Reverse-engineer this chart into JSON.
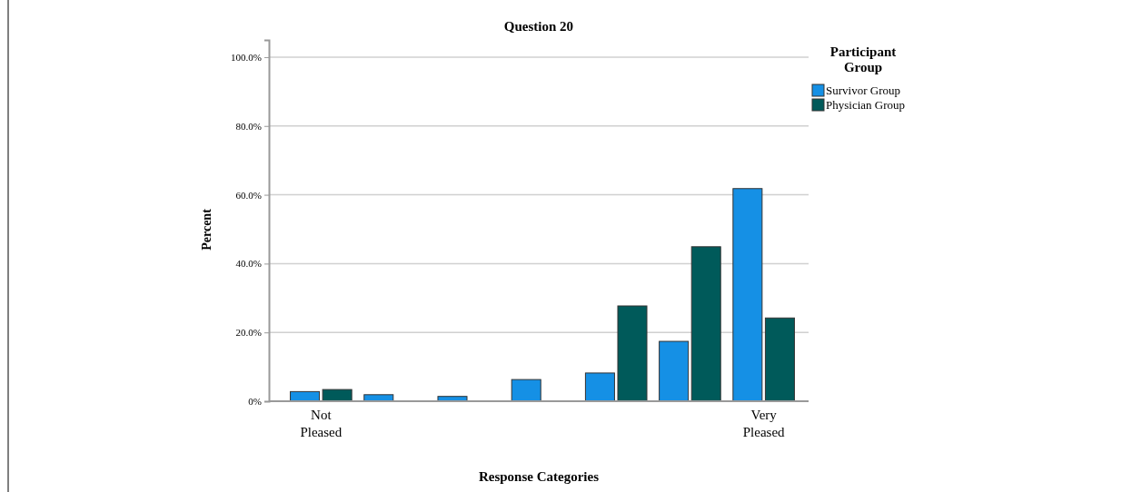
{
  "chart_data": {
    "type": "bar",
    "title": "Question 20",
    "xlabel": "Response Categories",
    "ylabel": "Percent",
    "legend_title": "Participant Group",
    "categories": [
      "Not Pleased",
      null,
      null,
      null,
      null,
      null,
      "Very Pleased"
    ],
    "series": [
      {
        "name": "Survivor Group",
        "color": "#1590e5",
        "values": [
          2.8,
          1.9,
          1.4,
          6.3,
          8.2,
          17.4,
          61.8
        ]
      },
      {
        "name": "Physician Group",
        "color": "#005a5a",
        "values": [
          3.4,
          0,
          0,
          0,
          27.7,
          44.9,
          24.2
        ]
      }
    ],
    "ylim": [
      0,
      105
    ],
    "yticks": [
      {
        "value": 0,
        "label": "0%"
      },
      {
        "value": 20,
        "label": "20.0%"
      },
      {
        "value": 40,
        "label": "40.0%"
      },
      {
        "value": 60,
        "label": "60.0%"
      },
      {
        "value": 80,
        "label": "80.0%"
      },
      {
        "value": 100,
        "label": "100.0%"
      }
    ],
    "grid": "y",
    "legend": "top right"
  }
}
